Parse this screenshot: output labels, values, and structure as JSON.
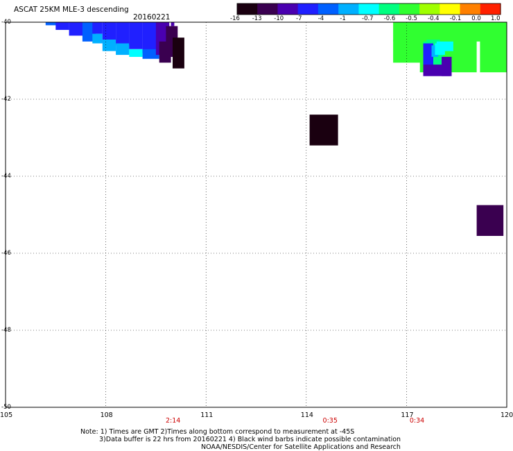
{
  "header": {
    "title": "ASCAT 25KM MLE-3 descending",
    "date": "20160221"
  },
  "colorbar": {
    "labels": [
      "-16",
      "-13",
      "-10",
      "-7",
      "-4",
      "-1",
      "-0.7",
      "-0.6",
      "-0.5",
      "-0.4",
      "-0.1",
      "0.0",
      "1.0"
    ],
    "colors": [
      "#1a0010",
      "#3a0050",
      "#4a00b0",
      "#2020ff",
      "#0060ff",
      "#00b0ff",
      "#00ffff",
      "#00ff80",
      "#30ff30",
      "#a0ff00",
      "#ffff00",
      "#ff8000",
      "#ff2000"
    ]
  },
  "axes": {
    "x_ticks": [
      "105",
      "108",
      "111",
      "114",
      "117",
      "120"
    ],
    "y_ticks": [
      "-40",
      "-42",
      "-44",
      "-46",
      "-48",
      "-50"
    ]
  },
  "times": [
    {
      "label": "2:14",
      "lon": 110
    },
    {
      "label": "0:35",
      "lon": 114.7
    },
    {
      "label": "0:34",
      "lon": 117.3
    }
  ],
  "notes": {
    "line1": "Note: 1) Times are GMT 2)Times along bottom correspond to measurement at -45S",
    "line2": "3)Data buffer is 22 hrs from 20160221 4) Black wind barbs indicate possible contamination",
    "line3": "NOAA/NESDIS/Center for Satellite Applications and Research"
  },
  "map": {
    "lon_range": [
      105,
      120
    ],
    "lat_range": [
      -50,
      -40
    ],
    "cells": [
      {
        "lon": 106.2,
        "lat": -40.0,
        "w": 0.5,
        "h": 0.08,
        "c": "#0060ff"
      },
      {
        "lon": 106.5,
        "lat": -40.0,
        "w": 0.4,
        "h": 0.2,
        "c": "#2020ff"
      },
      {
        "lon": 106.9,
        "lat": -40.0,
        "w": 0.5,
        "h": 0.35,
        "c": "#2020ff"
      },
      {
        "lon": 107.3,
        "lat": -40.0,
        "w": 0.4,
        "h": 0.5,
        "c": "#0060ff"
      },
      {
        "lon": 107.6,
        "lat": -40.3,
        "w": 0.3,
        "h": 0.25,
        "c": "#00b0ff"
      },
      {
        "lon": 107.6,
        "lat": -40.0,
        "w": 0.3,
        "h": 0.3,
        "c": "#2020ff"
      },
      {
        "lon": 107.9,
        "lat": -40.0,
        "w": 0.4,
        "h": 0.55,
        "c": "#2020ff"
      },
      {
        "lon": 107.9,
        "lat": -40.45,
        "w": 0.4,
        "h": 0.3,
        "c": "#00b0ff"
      },
      {
        "lon": 108.3,
        "lat": -40.0,
        "w": 0.4,
        "h": 0.6,
        "c": "#2020ff"
      },
      {
        "lon": 108.3,
        "lat": -40.55,
        "w": 0.4,
        "h": 0.3,
        "c": "#00b0ff"
      },
      {
        "lon": 108.7,
        "lat": -40.0,
        "w": 0.4,
        "h": 0.7,
        "c": "#2020ff"
      },
      {
        "lon": 108.7,
        "lat": -40.7,
        "w": 0.4,
        "h": 0.2,
        "c": "#00ffff"
      },
      {
        "lon": 109.1,
        "lat": -40.0,
        "w": 0.5,
        "h": 0.8,
        "c": "#2020ff"
      },
      {
        "lon": 109.1,
        "lat": -40.7,
        "w": 0.5,
        "h": 0.25,
        "c": "#0060ff"
      },
      {
        "lon": 109.5,
        "lat": -40.0,
        "w": 0.4,
        "h": 0.85,
        "c": "#4a00b0"
      },
      {
        "lon": 109.8,
        "lat": -40.1,
        "w": 0.35,
        "h": 0.8,
        "c": "#3a0050"
      },
      {
        "lon": 109.6,
        "lat": -40.5,
        "w": 0.35,
        "h": 0.55,
        "c": "#3a0050"
      },
      {
        "lon": 110.0,
        "lat": -40.4,
        "w": 0.35,
        "h": 0.8,
        "c": "#1a0010"
      },
      {
        "lon": 109.95,
        "lat": -40.0,
        "w": 0.1,
        "h": 0.1,
        "c": "#4a00b0"
      },
      {
        "lon": 114.1,
        "lat": -42.4,
        "w": 0.85,
        "h": 0.8,
        "c": "#1a0010"
      },
      {
        "lon": 119.1,
        "lat": -44.75,
        "w": 0.8,
        "h": 0.8,
        "c": "#3a0050"
      },
      {
        "lon": 116.6,
        "lat": -40.0,
        "w": 3.4,
        "h": 0.5,
        "c": "#30ff30"
      },
      {
        "lon": 116.6,
        "lat": -40.45,
        "w": 1.0,
        "h": 0.6,
        "c": "#30ff30"
      },
      {
        "lon": 117.4,
        "lat": -40.45,
        "w": 1.7,
        "h": 0.85,
        "c": "#30ff30"
      },
      {
        "lon": 117.6,
        "lat": -40.45,
        "w": 0.4,
        "h": 0.85,
        "c": "#00ff80"
      },
      {
        "lon": 119.2,
        "lat": -40.45,
        "w": 0.8,
        "h": 0.85,
        "c": "#30ff30"
      },
      {
        "lon": 117.5,
        "lat": -40.5,
        "w": 0.6,
        "h": 0.6,
        "c": "#00ff80"
      },
      {
        "lon": 117.9,
        "lat": -40.5,
        "w": 0.5,
        "h": 0.25,
        "c": "#00ffff"
      },
      {
        "lon": 117.5,
        "lat": -40.55,
        "w": 0.3,
        "h": 0.6,
        "c": "#2020ff"
      },
      {
        "lon": 117.75,
        "lat": -40.6,
        "w": 0.2,
        "h": 0.3,
        "c": "#00b0ff"
      },
      {
        "lon": 117.85,
        "lat": -40.55,
        "w": 0.3,
        "h": 0.3,
        "c": "#00ffff"
      },
      {
        "lon": 117.5,
        "lat": -41.1,
        "w": 0.8,
        "h": 0.3,
        "c": "#4a00b0"
      },
      {
        "lon": 118.05,
        "lat": -40.9,
        "w": 0.3,
        "h": 0.5,
        "c": "#4a00b0"
      }
    ]
  }
}
